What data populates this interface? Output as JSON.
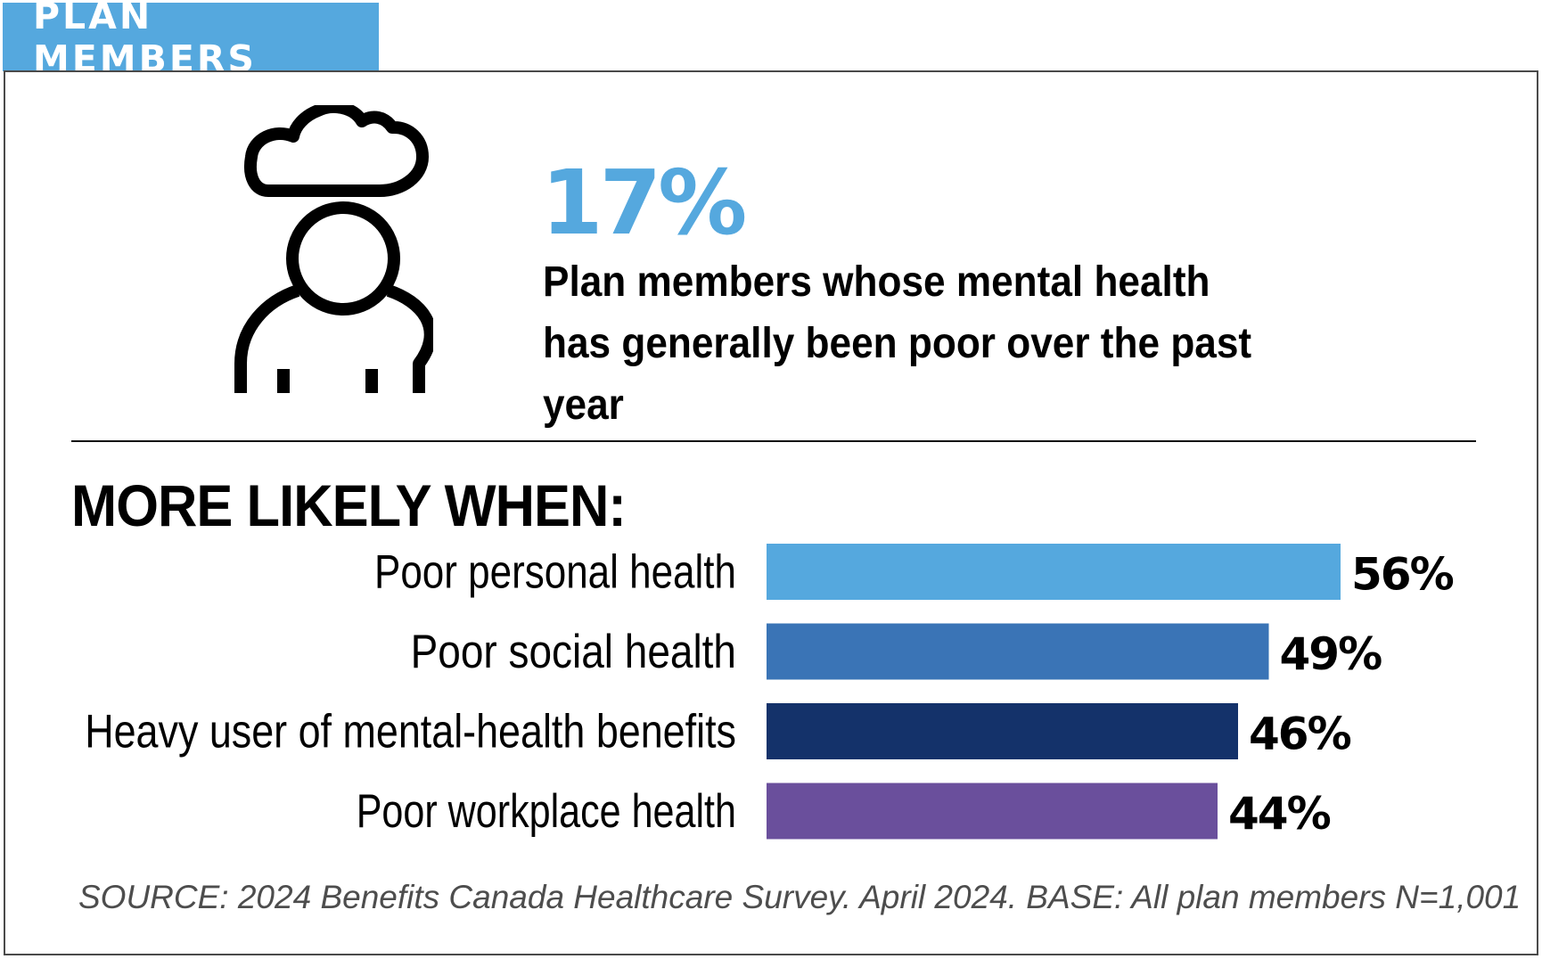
{
  "header": {
    "tab_label": "PLAN MEMBERS"
  },
  "highlight": {
    "value": "17%",
    "description": "Plan members whose mental health has generally been poor over the past year"
  },
  "section": {
    "heading": "MORE LIKELY WHEN:"
  },
  "colors": {
    "accent": "#55a8de",
    "bars": [
      "#55a8de",
      "#3a74b6",
      "#14326a",
      "#6a4f9c"
    ]
  },
  "icons": {
    "hero": "person-with-cloud-icon"
  },
  "chart_data": {
    "type": "bar",
    "orientation": "horizontal",
    "categories": [
      "Poor personal health",
      "Poor social health",
      "Heavy user of mental-health benefits",
      "Poor workplace health"
    ],
    "values": [
      56,
      49,
      46,
      44
    ],
    "value_labels": [
      "56%",
      "49%",
      "46%",
      "44%"
    ],
    "unit": "%",
    "title": "",
    "xlabel": "",
    "ylabel": "",
    "xlim": [
      0,
      100
    ],
    "grid": false,
    "legend": "none"
  },
  "footer": {
    "source": "SOURCE: 2024 Benefits Canada Healthcare Survey. April 2024. BASE: All plan members N=1,001"
  }
}
